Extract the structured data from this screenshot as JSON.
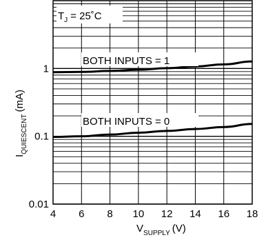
{
  "chart_data": {
    "type": "line",
    "title": "",
    "xlabel": "V",
    "xlabel_sub": "SUPPLY",
    "xlabel_unit": "(V)",
    "ylabel": "I",
    "ylabel_sub": "QUIESCENT",
    "ylabel_unit": "(mA)",
    "x_ticks": [
      "4",
      "6",
      "8",
      "10",
      "12",
      "14",
      "16",
      "18"
    ],
    "y_ticks": [
      "0.01",
      "0.1",
      "1"
    ],
    "xlim": [
      4,
      18
    ],
    "ylim": [
      0.01,
      10
    ],
    "yscale": "log",
    "grid": true,
    "annotation_temp": "T",
    "annotation_temp_sub": "J",
    "annotation_temp_value": "= 25˚C",
    "series": [
      {
        "name": "BOTH INPUTS = 1",
        "x": [
          4,
          6,
          8,
          10,
          12,
          14,
          16,
          18
        ],
        "y": [
          0.88,
          0.89,
          0.92,
          0.96,
          1.01,
          1.07,
          1.15,
          1.27
        ]
      },
      {
        "name": "BOTH INPUTS = 0",
        "x": [
          4,
          6,
          8,
          10,
          12,
          14,
          16,
          18
        ],
        "y": [
          0.098,
          0.1,
          0.106,
          0.113,
          0.12,
          0.128,
          0.137,
          0.152
        ]
      }
    ]
  }
}
